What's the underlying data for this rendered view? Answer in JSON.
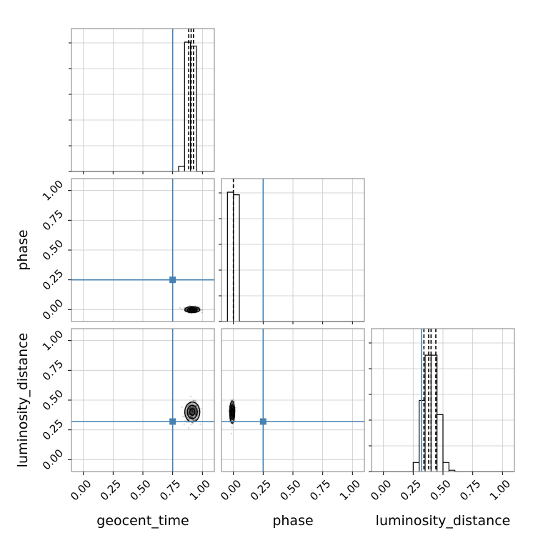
{
  "chart_data": {
    "type": "corner",
    "parameters": [
      {
        "key": "geocent_time",
        "label": "geocent_time"
      },
      {
        "key": "phase",
        "label": "phase"
      },
      {
        "key": "luminosity_distance",
        "label": "luminosity_distance"
      }
    ],
    "axis_range": [
      -0.1,
      1.1
    ],
    "ticks": [
      "0.00",
      "0.25",
      "0.50",
      "0.75",
      "1.00"
    ],
    "grid": true,
    "truth_color": "#4682b4",
    "truths": {
      "geocent_time": 0.75,
      "phase": 0.25,
      "luminosity_distance": 0.32
    },
    "histograms": {
      "geocent_time": {
        "bins": [
          [
            0.8,
            0.85,
            0.04
          ],
          [
            0.85,
            0.9,
            1.0
          ],
          [
            0.9,
            0.95,
            0.97
          ]
        ],
        "quantiles": [
          0.885,
          0.905,
          0.925
        ]
      },
      "phase": {
        "bins": [
          [
            -0.05,
            0.0,
            1.0
          ],
          [
            0.0,
            0.05,
            0.98
          ]
        ],
        "quantiles": [
          0.0
        ]
      },
      "luminosity_distance": {
        "bins": [
          [
            0.25,
            0.3,
            0.07
          ],
          [
            0.3,
            0.35,
            0.55
          ],
          [
            0.35,
            0.4,
            0.9
          ],
          [
            0.4,
            0.45,
            0.9
          ],
          [
            0.45,
            0.5,
            0.44
          ],
          [
            0.5,
            0.55,
            0.07
          ],
          [
            0.55,
            0.6,
            0.01
          ]
        ],
        "quantiles": [
          0.34,
          0.38,
          0.4,
          0.44
        ]
      }
    },
    "posterior_blobs": [
      {
        "x_param": "geocent_time",
        "y_param": "phase",
        "cx": 0.915,
        "cy": 0.0,
        "sx": 0.03,
        "sy": 0.012
      },
      {
        "x_param": "geocent_time",
        "y_param": "luminosity_distance",
        "cx": 0.915,
        "cy": 0.4,
        "sx": 0.03,
        "sy": 0.04
      },
      {
        "x_param": "phase",
        "y_param": "luminosity_distance",
        "cx": -0.01,
        "cy": 0.4,
        "sx": 0.01,
        "sy": 0.045
      }
    ]
  }
}
